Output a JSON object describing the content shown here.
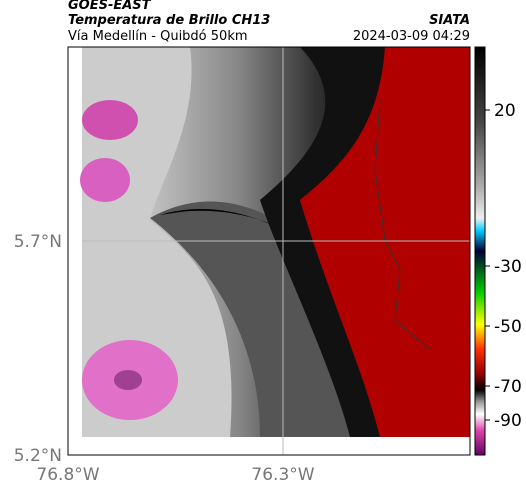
{
  "header": {
    "agency": "GOES-EAST",
    "title": "Temperatura de Brillo CH13",
    "source": "SIATA",
    "subtitle": "Vía Medellín - Quibdó 50km",
    "timestamp": "2024-03-09 04:29"
  },
  "map": {
    "lat_labels": [
      "5.7°N",
      "5.2°N"
    ],
    "lon_labels": [
      "76.8°W",
      "76.3°W"
    ]
  },
  "colorbar": {
    "ticks": [
      20,
      -30,
      -50,
      -70,
      -90
    ]
  }
}
